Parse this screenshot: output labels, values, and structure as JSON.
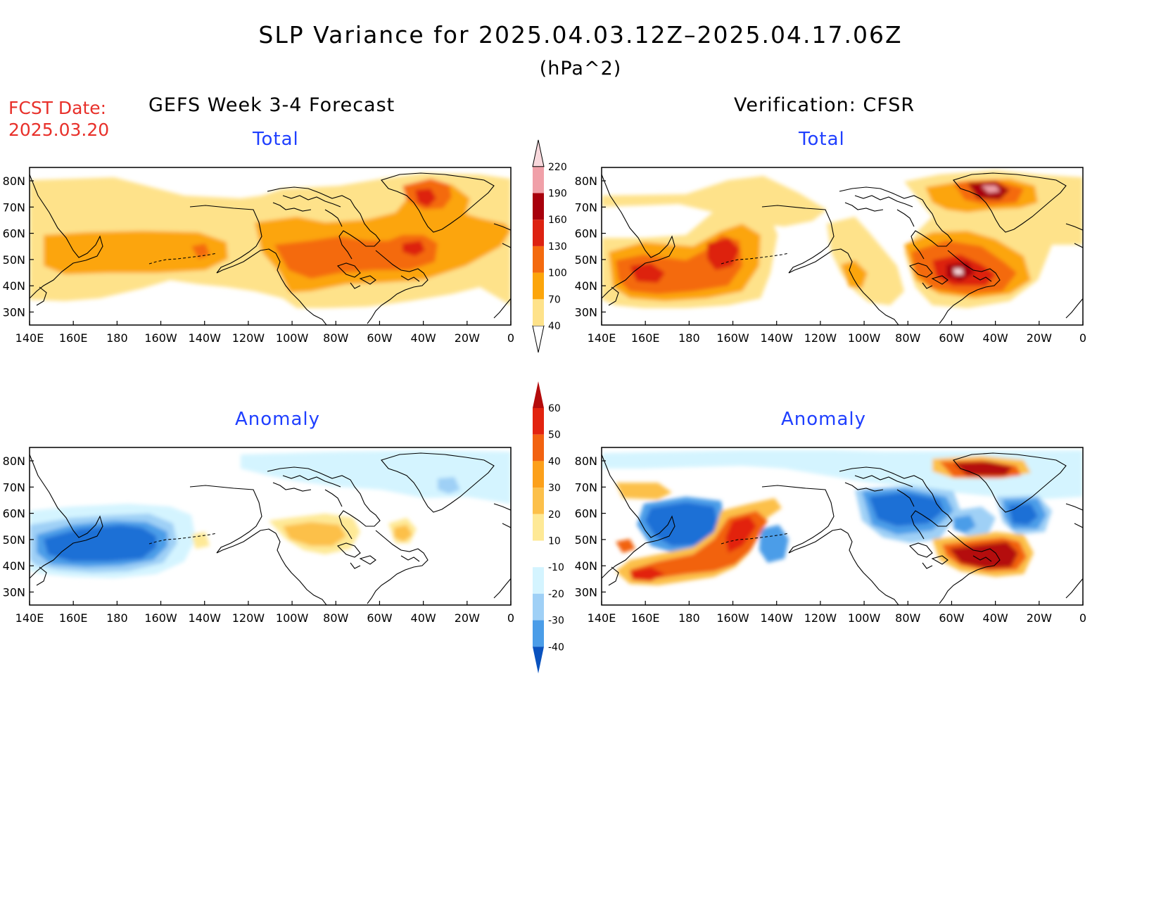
{
  "header": {
    "title": "SLP Variance for 2025.04.03.12Z–2025.04.17.06Z",
    "units": "(hPa^2)",
    "fcst_date_label": "FCST Date:",
    "fcst_date_value": "2025.03.20"
  },
  "columns": {
    "left_title": "GEFS Week 3-4 Forecast",
    "right_title": "Verification: CFSR"
  },
  "panels": {
    "total_title": "Total",
    "anomaly_title": "Anomaly"
  },
  "axes": {
    "lat_labels": [
      "80N",
      "70N",
      "60N",
      "50N",
      "40N",
      "30N"
    ],
    "lon_labels": [
      "140E",
      "160E",
      "180",
      "160W",
      "140W",
      "120W",
      "100W",
      "80W",
      "60W",
      "40W",
      "20W",
      "0"
    ]
  },
  "colorbars": {
    "total": {
      "levels": [
        "40",
        "70",
        "100",
        "130",
        "160",
        "190",
        "220"
      ],
      "colors": [
        "#fee28a",
        "#fca50a",
        "#f46a0e",
        "#dd2211",
        "#a8000c",
        "#f0a0a8",
        "#f8d8dc"
      ]
    },
    "anomaly": {
      "levels": [
        "60",
        "50",
        "40",
        "30",
        "20",
        "10",
        "-10",
        "-20",
        "-30",
        "-40"
      ],
      "colors": [
        "#b40b0b",
        "#e2230f",
        "#f26210",
        "#fca01a",
        "#fcc04a",
        "#fee996",
        "#ffffff",
        "#d4f4ff",
        "#9fd0f6",
        "#4b9de8",
        "#1c6fd6",
        "#0a52be"
      ]
    }
  }
}
